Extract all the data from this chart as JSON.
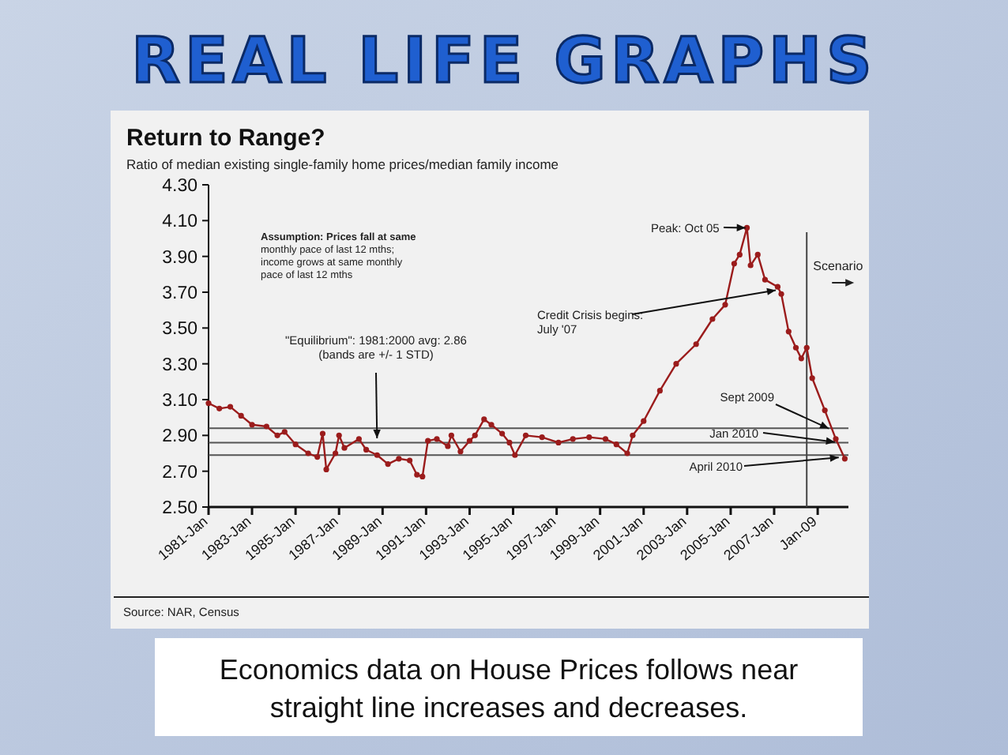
{
  "chart_data": {
    "type": "line",
    "title": "Return to Range?",
    "subtitle": "Ratio of median existing single-family home prices/median family income",
    "x": [
      "1981-01",
      "1981-07",
      "1982-01",
      "1982-07",
      "1983-01",
      "1983-09",
      "1984-03",
      "1984-07",
      "1985-01",
      "1985-08",
      "1986-01",
      "1986-04",
      "1986-06",
      "1986-11",
      "1987-01",
      "1987-04",
      "1987-12",
      "1988-04",
      "1988-10",
      "1989-04",
      "1989-10",
      "1990-04",
      "1990-08",
      "1990-11",
      "1991-02",
      "1991-07",
      "1992-01",
      "1992-03",
      "1992-08",
      "1993-01",
      "1993-04",
      "1993-09",
      "1994-01",
      "1994-07",
      "1994-11",
      "1995-02",
      "1995-08",
      "1996-05",
      "1997-02",
      "1997-10",
      "1998-07",
      "1999-04",
      "1999-10",
      "2000-04",
      "2000-07",
      "2001-01",
      "2001-10",
      "2002-07",
      "2003-06",
      "2004-03",
      "2004-10",
      "2005-03",
      "2005-06",
      "2005-10",
      "2005-12",
      "2006-04",
      "2006-08",
      "2007-03",
      "2007-05",
      "2007-09",
      "2008-01",
      "2008-04",
      "2008-07",
      "2008-10",
      "2009-05",
      "2009-11",
      "2010-04"
    ],
    "series": [
      {
        "color": "#9b1c1c",
        "values": [
          3.08,
          3.05,
          3.06,
          3.01,
          2.96,
          2.95,
          2.9,
          2.92,
          2.85,
          2.8,
          2.78,
          2.91,
          2.71,
          2.8,
          2.9,
          2.83,
          2.88,
          2.82,
          2.79,
          2.74,
          2.77,
          2.76,
          2.68,
          2.67,
          2.87,
          2.88,
          2.84,
          2.9,
          2.81,
          2.87,
          2.9,
          2.99,
          2.96,
          2.91,
          2.86,
          2.79,
          2.9,
          2.89,
          2.86,
          2.88,
          2.89,
          2.88,
          2.85,
          2.8,
          2.9,
          2.98,
          3.15,
          3.3,
          3.41,
          3.55,
          3.63,
          3.86,
          3.91,
          4.06,
          3.85,
          3.91,
          3.77,
          3.73,
          3.69,
          3.48,
          3.39,
          3.33,
          3.39,
          3.22,
          3.04,
          2.88,
          2.77
        ]
      }
    ],
    "xlim": [
      "1981-01",
      "2010-06"
    ],
    "xticks": [
      {
        "value": "1981-01",
        "label": "1981-Jan"
      },
      {
        "value": "1983-01",
        "label": "1983-Jan"
      },
      {
        "value": "1985-01",
        "label": "1985-Jan"
      },
      {
        "value": "1987-01",
        "label": "1987-Jan"
      },
      {
        "value": "1989-01",
        "label": "1989-Jan"
      },
      {
        "value": "1991-01",
        "label": "1991-Jan"
      },
      {
        "value": "1993-01",
        "label": "1993-Jan"
      },
      {
        "value": "1995-01",
        "label": "1995-Jan"
      },
      {
        "value": "1997-01",
        "label": "1997-Jan"
      },
      {
        "value": "1999-01",
        "label": "1999-Jan"
      },
      {
        "value": "2001-01",
        "label": "2001-Jan"
      },
      {
        "value": "2003-01",
        "label": "2003-Jan"
      },
      {
        "value": "2005-01",
        "label": "2005-Jan"
      },
      {
        "value": "2007-01",
        "label": "2007-Jan"
      },
      {
        "value": "2009-01",
        "label": "Jan-09"
      }
    ],
    "ylim": [
      2.5,
      4.3
    ],
    "yticks": [
      {
        "value": 2.5,
        "label": "2.50"
      },
      {
        "value": 2.7,
        "label": "2.70"
      },
      {
        "value": 2.9,
        "label": "2.90"
      },
      {
        "value": 3.1,
        "label": "3.10"
      },
      {
        "value": 3.3,
        "label": "3.30"
      },
      {
        "value": 3.5,
        "label": "3.50"
      },
      {
        "value": 3.7,
        "label": "3.70"
      },
      {
        "value": 3.9,
        "label": "3.90"
      },
      {
        "value": 4.1,
        "label": "4.10"
      },
      {
        "value": 4.3,
        "label": "4.30"
      }
    ],
    "marker": "circle",
    "line_style": "solid",
    "grid": false,
    "ref_lines": [
      {
        "axis": "y",
        "value": 2.94,
        "color": "#555555"
      },
      {
        "axis": "y",
        "value": 2.86,
        "color": "#555555"
      },
      {
        "axis": "y",
        "value": 2.79,
        "color": "#555555"
      },
      {
        "axis": "x",
        "value": "2008-07",
        "label": "Scenario",
        "color": "#444444"
      }
    ],
    "annotations": [
      "REAL LIFE GRAPHS",
      "Assumption: Prices fall at same monthly pace of last 12 mths; income grows at same monthly pace of last 12 mths",
      {
        "text": "Peak: Oct 05",
        "x": "2005-10",
        "y": 4.06
      },
      {
        "text": "Credit Crisis begins: July '07",
        "x": "2007-07",
        "y": 3.72
      },
      {
        "text": "\"Equilibrium\": 1981:2000 avg: 2.86 (bands are +/- 1 STD)",
        "x": "1988-10",
        "y": 2.86
      },
      {
        "text": "Sept 2009",
        "x": "2009-09",
        "y": 2.93
      },
      {
        "text": "Jan 2010",
        "x": "2010-01",
        "y": 2.86
      },
      {
        "text": "April 2010",
        "x": "2010-04",
        "y": 2.78
      },
      "Source: NAR, Census",
      "Economics data on House Prices follows near straight line increases and decreases."
    ]
  }
}
